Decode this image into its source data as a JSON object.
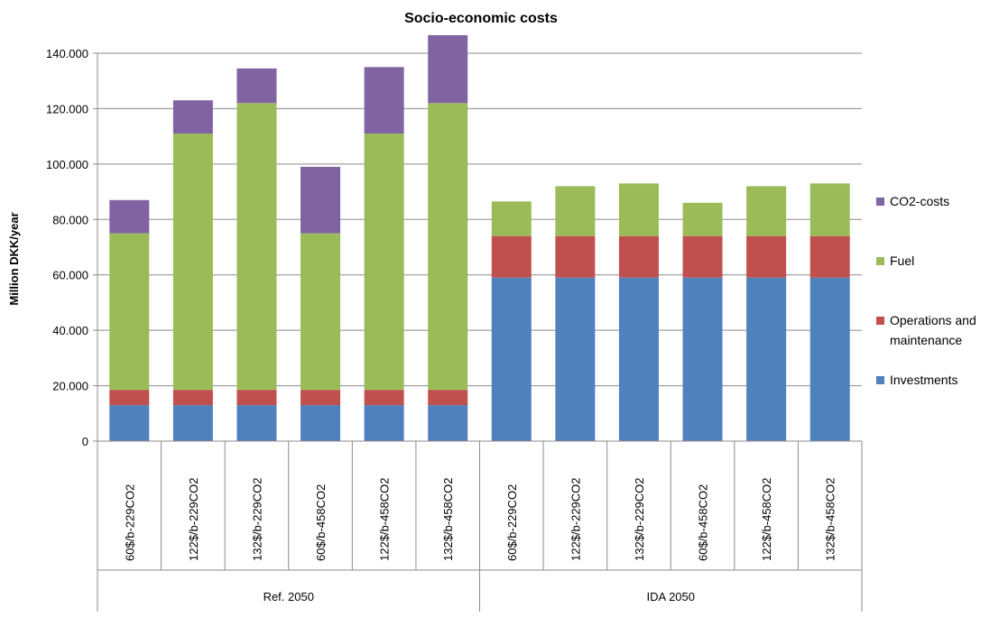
{
  "chart_data": {
    "type": "bar",
    "stacked": true,
    "title": "Socio-economic costs",
    "xlabel": "",
    "ylabel": "Million DKK/year",
    "ylim": [
      0,
      140000
    ],
    "yticks": [
      "0",
      "20.000",
      "40.000",
      "60.000",
      "80.000",
      "100.000",
      "120.000",
      "140.000"
    ],
    "ytick_values": [
      0,
      20000,
      40000,
      60000,
      80000,
      100000,
      120000,
      140000
    ],
    "grid": true,
    "legend_position": "right",
    "categories": [
      "60$/b-229CO2",
      "122$/b-229CO2",
      "132$/b-229CO2",
      "60$/b-458CO2",
      "122$/b-458CO2",
      "132$/b-458CO2",
      "60$/b-229CO2",
      "122$/b-229CO2",
      "132$/b-229CO2",
      "60$/b-458CO2",
      "122$/b-458CO2",
      "132$/b-458CO2"
    ],
    "groups": [
      {
        "label": "Ref. 2050",
        "count": 6
      },
      {
        "label": "IDA 2050",
        "count": 6
      }
    ],
    "series": [
      {
        "name": "Investments",
        "color": "#4f81bd",
        "values": [
          13000,
          13000,
          13000,
          13000,
          13000,
          13000,
          59000,
          59000,
          59000,
          59000,
          59000,
          59000
        ]
      },
      {
        "name": "Operations and maintenance",
        "color": "#c0504d",
        "values": [
          5500,
          5500,
          5500,
          5500,
          5500,
          5500,
          15000,
          15000,
          15000,
          15000,
          15000,
          15000
        ]
      },
      {
        "name": "Fuel",
        "color": "#9bbb59",
        "values": [
          56500,
          92500,
          103500,
          56500,
          92500,
          103500,
          12500,
          18000,
          19000,
          12000,
          18000,
          19000
        ]
      },
      {
        "name": "CO2-costs",
        "color": "#8064a2",
        "values": [
          12000,
          12000,
          12500,
          24000,
          24000,
          24500,
          0,
          0,
          0,
          0,
          0,
          0
        ]
      }
    ],
    "legend": [
      {
        "label_lines": [
          "CO2-costs"
        ],
        "color": "#8064a2"
      },
      {
        "label_lines": [
          "Fuel"
        ],
        "color": "#9bbb59"
      },
      {
        "label_lines": [
          "Operations and",
          "maintenance"
        ],
        "color": "#c0504d"
      },
      {
        "label_lines": [
          "Investments"
        ],
        "color": "#4f81bd"
      }
    ]
  }
}
